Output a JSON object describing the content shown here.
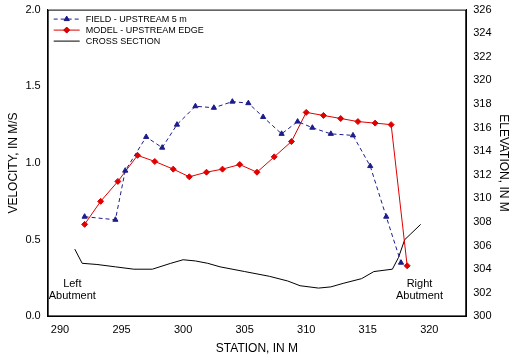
{
  "chart_data": {
    "type": "line",
    "x_label": "STATION, IN M",
    "y_label": "VELOCITY, IN M/S",
    "y2_label": "ELEVATION, IN M",
    "xlim": [
      289,
      323
    ],
    "xticks": [
      290,
      295,
      300,
      305,
      310,
      315,
      320
    ],
    "ylim": [
      0,
      2
    ],
    "yticks": [
      {
        "value": 0,
        "label": "0.0"
      },
      {
        "value": 0.5,
        "label": "0.5"
      },
      {
        "value": 1,
        "label": "1.0"
      },
      {
        "value": 1.5,
        "label": "1.5"
      },
      {
        "value": 2,
        "label": "2.0"
      }
    ],
    "y2lim": [
      300,
      326
    ],
    "y2ticks": [
      300,
      302,
      304,
      306,
      308,
      310,
      312,
      314,
      316,
      318,
      320,
      322,
      324,
      326
    ],
    "grid": false,
    "legend": "upper left",
    "series": [
      {
        "name": "FIELD - UPSTREAM 5 m",
        "color": "#1c1c8c",
        "marker": "triangle",
        "line_style": "dashed",
        "axis": "y",
        "x": [
          292.0,
          294.5,
          295.3,
          297.0,
          298.3,
          299.5,
          301.0,
          302.5,
          304.0,
          305.3,
          306.5,
          308.0,
          309.3,
          310.5,
          312.0,
          313.8,
          315.2,
          316.5,
          317.7
        ],
        "values": [
          0.65,
          0.63,
          0.95,
          1.17,
          1.1,
          1.25,
          1.37,
          1.36,
          1.4,
          1.39,
          1.3,
          1.19,
          1.27,
          1.23,
          1.19,
          1.18,
          0.98,
          0.65,
          0.35
        ]
      },
      {
        "name": "MODEL - UPSTREAM EDGE",
        "color": "#e00000",
        "marker": "diamond",
        "line_style": "solid",
        "axis": "y",
        "x": [
          292.0,
          293.3,
          294.7,
          296.3,
          297.7,
          299.2,
          300.5,
          301.9,
          303.2,
          304.6,
          306.0,
          307.4,
          308.8,
          310.0,
          311.4,
          312.8,
          314.2,
          315.6,
          316.9,
          318.2
        ],
        "values": [
          0.6,
          0.75,
          0.88,
          1.05,
          1.01,
          0.96,
          0.91,
          0.94,
          0.96,
          0.99,
          0.94,
          1.04,
          1.14,
          1.33,
          1.31,
          1.29,
          1.27,
          1.26,
          1.25,
          0.33
        ]
      },
      {
        "name": "CROSS SECTION",
        "color": "#000000",
        "marker": "none",
        "line_style": "solid",
        "axis": "y2",
        "x": [
          291.2,
          291.8,
          293.0,
          294.5,
          296.0,
          297.5,
          299.0,
          300.0,
          301.0,
          302.0,
          303.0,
          305.0,
          307.0,
          308.5,
          309.5,
          311.0,
          312.0,
          313.0,
          314.5,
          315.5,
          317.0,
          317.5,
          318.0,
          318.5,
          319.3
        ],
        "values": [
          305.7,
          304.5,
          304.4,
          304.2,
          304.0,
          304.0,
          304.5,
          304.8,
          304.7,
          304.5,
          304.2,
          303.8,
          303.4,
          303.0,
          302.6,
          302.4,
          302.5,
          302.8,
          303.2,
          303.8,
          304.0,
          305.0,
          306.5,
          307.0,
          307.8
        ]
      }
    ],
    "annotations": [
      {
        "text": "Left Abutment",
        "x": 291.0,
        "y": 0.17
      },
      {
        "text": "Right Abutment",
        "x": 319.2,
        "y": 0.17
      }
    ]
  }
}
